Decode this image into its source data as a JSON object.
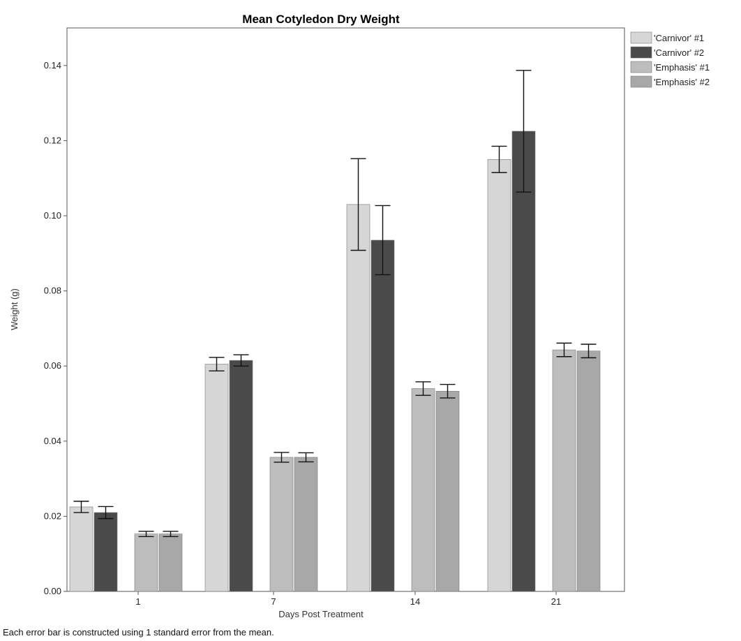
{
  "chart_data": {
    "type": "bar",
    "title": "Mean Cotyledon Dry Weight",
    "xlabel": "Days Post Treatment",
    "ylabel": "Weight (g)",
    "ylim": [
      0,
      0.15
    ],
    "yticks": [
      "0.00",
      "0.02",
      "0.04",
      "0.06",
      "0.08",
      "0.10",
      "0.12",
      "0.14"
    ],
    "categories": [
      "1",
      "7",
      "14",
      "21"
    ],
    "series": [
      {
        "name": "'Carnivor' #1",
        "color": "#d6d6d6",
        "values": [
          0.0225,
          0.0605,
          0.103,
          0.115
        ],
        "errors": [
          0.0015,
          0.0018,
          0.0122,
          0.0035
        ]
      },
      {
        "name": "'Carnivor' #2",
        "color": "#4a4a4a",
        "values": [
          0.021,
          0.0615,
          0.0935,
          0.1225
        ],
        "errors": [
          0.0016,
          0.0015,
          0.0092,
          0.0162
        ]
      },
      {
        "name": "'Emphasis' #1",
        "color": "#bdbdbd",
        "values": [
          0.0153,
          0.0357,
          0.054,
          0.0643
        ],
        "errors": [
          0.0007,
          0.0013,
          0.0018,
          0.0018
        ]
      },
      {
        "name": "'Emphasis' #2",
        "color": "#a8a8a8",
        "values": [
          0.0153,
          0.0357,
          0.0533,
          0.064
        ],
        "errors": [
          0.0007,
          0.0012,
          0.0018,
          0.0018
        ]
      }
    ],
    "grid": false,
    "legend_position": "right"
  },
  "footnote": "Each error bar is constructed using 1 standard error from the mean."
}
